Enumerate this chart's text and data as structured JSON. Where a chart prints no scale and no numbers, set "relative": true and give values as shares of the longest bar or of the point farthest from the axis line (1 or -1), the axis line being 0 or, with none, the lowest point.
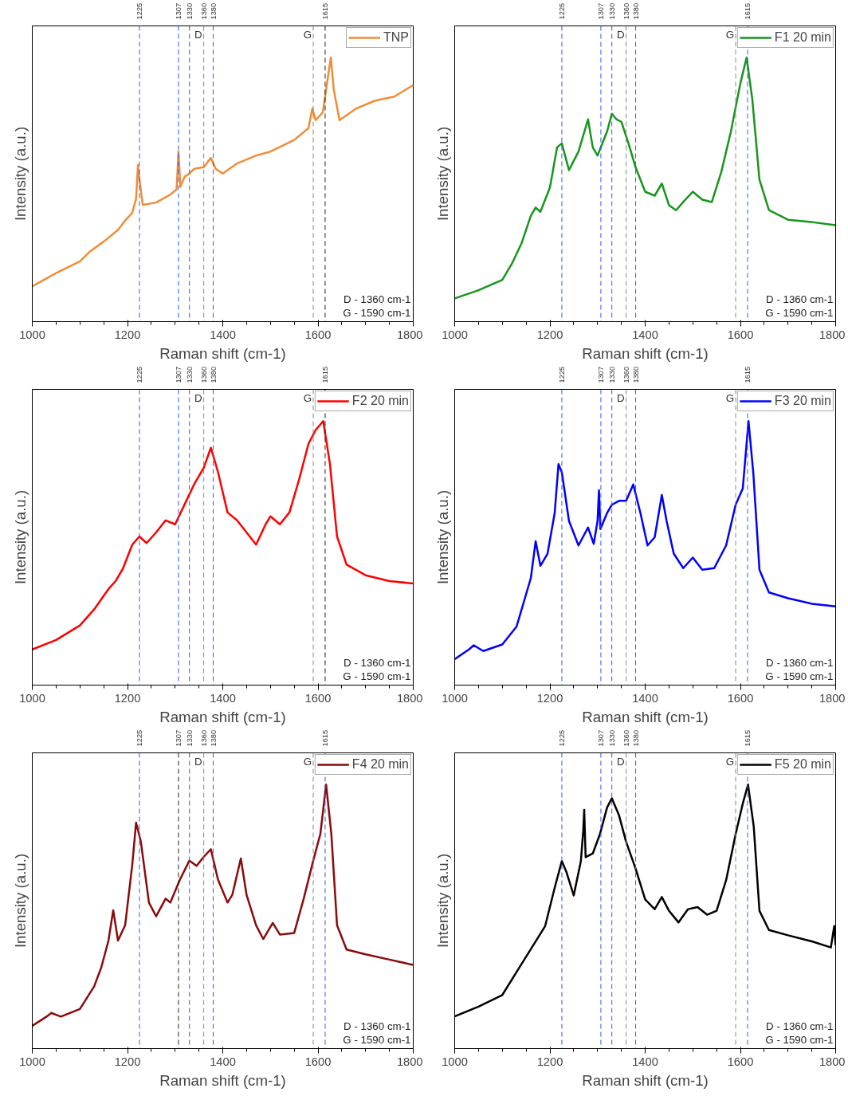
{
  "chart_data": [
    {
      "type": "line",
      "relative": true,
      "xlabel": "Raman shift (cm-1)",
      "ylabel": "Intensity (a.u.)",
      "xlim": [
        1000,
        1800
      ],
      "xticks": [
        1000,
        1200,
        1400,
        1600,
        1800
      ],
      "x2lim": [
        1000,
        1800
      ],
      "x2ticks": [
        1225,
        1307,
        1330,
        1360,
        1380,
        1615
      ],
      "grid": false,
      "legend": "top right",
      "marker": "none",
      "line_style": "solid",
      "series": [
        {
          "name": "TNP",
          "color": "#f28c34",
          "x": [
            1000,
            1050,
            1100,
            1120,
            1150,
            1180,
            1195,
            1210,
            1218,
            1222,
            1226,
            1232,
            1260,
            1290,
            1303,
            1307,
            1311,
            1320,
            1330,
            1340,
            1360,
            1375,
            1385,
            1400,
            1430,
            1470,
            1500,
            1550,
            1580,
            1588,
            1595,
            1610,
            1622,
            1627,
            1633,
            1645,
            1680,
            1720,
            1760,
            1800
          ],
          "values": [
            0.134,
            0.184,
            0.228,
            0.264,
            0.303,
            0.347,
            0.383,
            0.412,
            0.466,
            0.593,
            0.525,
            0.442,
            0.451,
            0.481,
            0.501,
            0.644,
            0.51,
            0.549,
            0.561,
            0.579,
            0.585,
            0.62,
            0.579,
            0.561,
            0.599,
            0.629,
            0.644,
            0.688,
            0.733,
            0.807,
            0.763,
            0.792,
            0.941,
            1,
            0.881,
            0.763,
            0.807,
            0.837,
            0.852,
            0.896
          ]
        }
      ],
      "ref_lines": [
        {
          "axis": "x",
          "value": 1225,
          "color": "#3355ff",
          "line_style": "dashed"
        },
        {
          "axis": "x",
          "value": 1307,
          "color": "#3355ff",
          "line_style": "dashed"
        },
        {
          "axis": "x",
          "value": 1330,
          "color": "#3355ff",
          "line_style": "dashed"
        },
        {
          "axis": "x",
          "value": 1360,
          "label": "D",
          "color": "#888888",
          "line_style": "dashed"
        },
        {
          "axis": "x",
          "value": 1380,
          "color": "#3355ff",
          "line_style": "dashed"
        },
        {
          "axis": "x",
          "value": 1590,
          "label": "G",
          "color": "#888888",
          "line_style": "dashed"
        },
        {
          "axis": "x",
          "value": 1615,
          "color": "#222222",
          "line_style": "dashed"
        }
      ],
      "annotations": [
        "D - 1360 cm-1",
        "G - 1590 cm-1"
      ]
    },
    {
      "type": "line",
      "relative": true,
      "xlabel": "Raman shift (cm-1)",
      "ylabel": "Intensity (a.u.)",
      "xlim": [
        1000,
        1800
      ],
      "xticks": [
        1000,
        1200,
        1400,
        1600,
        1800
      ],
      "x2lim": [
        1000,
        1800
      ],
      "x2ticks": [
        1225,
        1307,
        1330,
        1360,
        1380,
        1615
      ],
      "grid": false,
      "legend": "top right",
      "marker": "none",
      "line_style": "solid",
      "series": [
        {
          "name": "F1 20 min",
          "color": "#16961a",
          "x": [
            1000,
            1050,
            1100,
            1120,
            1140,
            1160,
            1170,
            1180,
            1200,
            1215,
            1225,
            1240,
            1260,
            1280,
            1290,
            1300,
            1320,
            1330,
            1340,
            1350,
            1365,
            1380,
            1400,
            1420,
            1435,
            1450,
            1465,
            1480,
            1500,
            1520,
            1540,
            1560,
            1580,
            1600,
            1613,
            1625,
            1640,
            1660,
            1700,
            1750,
            1800
          ],
          "values": [
            0.088,
            0.119,
            0.158,
            0.219,
            0.295,
            0.401,
            0.432,
            0.416,
            0.508,
            0.66,
            0.675,
            0.574,
            0.644,
            0.766,
            0.66,
            0.629,
            0.72,
            0.787,
            0.766,
            0.757,
            0.675,
            0.584,
            0.492,
            0.477,
            0.523,
            0.441,
            0.422,
            0.453,
            0.492,
            0.462,
            0.453,
            0.568,
            0.72,
            0.903,
            1,
            0.842,
            0.538,
            0.422,
            0.386,
            0.377,
            0.365
          ]
        }
      ],
      "ref_lines": [
        {
          "axis": "x",
          "value": 1225,
          "color": "#3355ff",
          "line_style": "dashed"
        },
        {
          "axis": "x",
          "value": 1307,
          "color": "#3355ff",
          "line_style": "dashed"
        },
        {
          "axis": "x",
          "value": 1330,
          "color": "#3355ff",
          "line_style": "dashed"
        },
        {
          "axis": "x",
          "value": 1360,
          "label": "D",
          "color": "#888888",
          "line_style": "dashed"
        },
        {
          "axis": "x",
          "value": 1380,
          "color": "#3355ff",
          "line_style": "dashed"
        },
        {
          "axis": "x",
          "value": 1590,
          "label": "G",
          "color": "#888888",
          "line_style": "dashed"
        },
        {
          "axis": "x",
          "value": 1615,
          "color": "#3355ff",
          "line_style": "dashed"
        }
      ],
      "annotations": [
        "D - 1360 cm-1",
        "G - 1590 cm-1"
      ]
    },
    {
      "type": "line",
      "relative": true,
      "xlabel": "Raman shift (cm-1)",
      "ylabel": "Intensity (a.u.)",
      "xlim": [
        1000,
        1800
      ],
      "xticks": [
        1000,
        1200,
        1400,
        1600,
        1800
      ],
      "x2lim": [
        1000,
        1800
      ],
      "x2ticks": [
        1225,
        1307,
        1330,
        1360,
        1380,
        1615
      ],
      "grid": false,
      "legend": "top right",
      "marker": "none",
      "line_style": "solid",
      "series": [
        {
          "name": "F2 20 min",
          "color": "#ff0000",
          "x": [
            1000,
            1050,
            1100,
            1130,
            1160,
            1175,
            1190,
            1210,
            1225,
            1240,
            1260,
            1280,
            1300,
            1320,
            1340,
            1360,
            1375,
            1390,
            1410,
            1430,
            1450,
            1470,
            1490,
            1500,
            1520,
            1540,
            1560,
            1580,
            1595,
            1611,
            1625,
            1640,
            1660,
            1700,
            1750,
            1800
          ],
          "values": [
            0.135,
            0.171,
            0.226,
            0.287,
            0.364,
            0.394,
            0.44,
            0.532,
            0.563,
            0.538,
            0.578,
            0.624,
            0.609,
            0.685,
            0.761,
            0.823,
            0.899,
            0.807,
            0.654,
            0.624,
            0.578,
            0.532,
            0.609,
            0.639,
            0.609,
            0.654,
            0.777,
            0.914,
            0.966,
            1,
            0.838,
            0.563,
            0.456,
            0.416,
            0.394,
            0.385
          ]
        }
      ],
      "ref_lines": [
        {
          "axis": "x",
          "value": 1225,
          "color": "#3355ff",
          "line_style": "dashed"
        },
        {
          "axis": "x",
          "value": 1307,
          "color": "#3355ff",
          "line_style": "dashed"
        },
        {
          "axis": "x",
          "value": 1330,
          "color": "#3355ff",
          "line_style": "dashed"
        },
        {
          "axis": "x",
          "value": 1360,
          "label": "D",
          "color": "#888888",
          "line_style": "dashed"
        },
        {
          "axis": "x",
          "value": 1380,
          "color": "#3355ff",
          "line_style": "dashed"
        },
        {
          "axis": "x",
          "value": 1590,
          "label": "G",
          "color": "#888888",
          "line_style": "dashed"
        },
        {
          "axis": "x",
          "value": 1615,
          "color": "#222222",
          "line_style": "dashed"
        }
      ],
      "annotations": [
        "D - 1360 cm-1",
        "G - 1590 cm-1"
      ]
    },
    {
      "type": "line",
      "relative": true,
      "xlabel": "Raman shift (cm-1)",
      "ylabel": "Intensity (a.u.)",
      "xlim": [
        1000,
        1800
      ],
      "xticks": [
        1000,
        1200,
        1400,
        1600,
        1800
      ],
      "x2lim": [
        1000,
        1800
      ],
      "x2ticks": [
        1225,
        1307,
        1330,
        1360,
        1380,
        1615
      ],
      "grid": false,
      "legend": "top right",
      "marker": "none",
      "line_style": "solid",
      "series": [
        {
          "name": "F3 20 min",
          "color": "#0000ff",
          "x": [
            1000,
            1030,
            1040,
            1060,
            1100,
            1130,
            1145,
            1160,
            1170,
            1180,
            1195,
            1210,
            1218,
            1225,
            1240,
            1260,
            1280,
            1292,
            1300,
            1303,
            1306,
            1320,
            1330,
            1345,
            1360,
            1375,
            1390,
            1405,
            1420,
            1435,
            1445,
            1460,
            1480,
            1500,
            1520,
            1545,
            1570,
            1590,
            1605,
            1617,
            1627,
            1640,
            1660,
            1700,
            1750,
            1800
          ],
          "values": [
            0.098,
            0.135,
            0.151,
            0.129,
            0.154,
            0.222,
            0.314,
            0.406,
            0.545,
            0.452,
            0.498,
            0.652,
            0.837,
            0.806,
            0.622,
            0.529,
            0.597,
            0.535,
            0.622,
            0.738,
            0.591,
            0.652,
            0.683,
            0.698,
            0.698,
            0.76,
            0.652,
            0.529,
            0.56,
            0.72,
            0.622,
            0.498,
            0.443,
            0.483,
            0.437,
            0.443,
            0.529,
            0.683,
            0.745,
            1,
            0.806,
            0.437,
            0.351,
            0.329,
            0.308,
            0.298
          ]
        }
      ],
      "ref_lines": [
        {
          "axis": "x",
          "value": 1225,
          "color": "#3355ff",
          "line_style": "dashed"
        },
        {
          "axis": "x",
          "value": 1307,
          "color": "#3355ff",
          "line_style": "dashed"
        },
        {
          "axis": "x",
          "value": 1330,
          "color": "#3355ff",
          "line_style": "dashed"
        },
        {
          "axis": "x",
          "value": 1360,
          "label": "D",
          "color": "#888888",
          "line_style": "dashed"
        },
        {
          "axis": "x",
          "value": 1380,
          "color": "#3355ff",
          "line_style": "dashed"
        },
        {
          "axis": "x",
          "value": 1590,
          "label": "G",
          "color": "#888888",
          "line_style": "dashed"
        },
        {
          "axis": "x",
          "value": 1615,
          "color": "#3355ff",
          "line_style": "dashed"
        }
      ],
      "annotations": [
        "D - 1360 cm-1",
        "G - 1590 cm-1"
      ]
    },
    {
      "type": "line",
      "relative": true,
      "xlabel": "Raman shift (cm-1)",
      "ylabel": "Intensity (a.u.)",
      "xlim": [
        1000,
        1800
      ],
      "xticks": [
        1000,
        1200,
        1400,
        1600,
        1800
      ],
      "x2lim": [
        1000,
        1800
      ],
      "x2ticks": [
        1225,
        1307,
        1330,
        1360,
        1380,
        1615
      ],
      "grid": false,
      "legend": "top right",
      "marker": "none",
      "line_style": "solid",
      "series": [
        {
          "name": "F4 20 min",
          "color": "#8b0a0a",
          "x": [
            1000,
            1030,
            1040,
            1060,
            1100,
            1130,
            1145,
            1160,
            1170,
            1180,
            1195,
            1210,
            1218,
            1228,
            1245,
            1260,
            1280,
            1290,
            1310,
            1330,
            1345,
            1360,
            1375,
            1390,
            1410,
            1420,
            1438,
            1450,
            1470,
            1485,
            1505,
            1520,
            1550,
            1570,
            1590,
            1605,
            1617,
            1628,
            1640,
            1660,
            1700,
            1750,
            1800
          ],
          "values": [
            0.086,
            0.121,
            0.135,
            0.121,
            0.15,
            0.236,
            0.308,
            0.409,
            0.524,
            0.409,
            0.467,
            0.697,
            0.856,
            0.784,
            0.553,
            0.501,
            0.568,
            0.553,
            0.64,
            0.712,
            0.692,
            0.726,
            0.755,
            0.64,
            0.553,
            0.582,
            0.72,
            0.582,
            0.467,
            0.415,
            0.476,
            0.432,
            0.438,
            0.568,
            0.712,
            0.813,
            1,
            0.813,
            0.467,
            0.375,
            0.357,
            0.337,
            0.317
          ]
        }
      ],
      "ref_lines": [
        {
          "axis": "x",
          "value": 1225,
          "color": "#3355ff",
          "line_style": "dashed"
        },
        {
          "axis": "x",
          "value": 1307,
          "color": "#222222",
          "line_style": "dashed"
        },
        {
          "axis": "x",
          "value": 1330,
          "color": "#3355ff",
          "line_style": "dashed"
        },
        {
          "axis": "x",
          "value": 1360,
          "label": "D",
          "color": "#888888",
          "line_style": "dashed"
        },
        {
          "axis": "x",
          "value": 1380,
          "color": "#3355ff",
          "line_style": "dashed"
        },
        {
          "axis": "x",
          "value": 1590,
          "label": "G",
          "color": "#888888",
          "line_style": "dashed"
        },
        {
          "axis": "x",
          "value": 1615,
          "color": "#3355ff",
          "line_style": "dashed"
        }
      ],
      "annotations": [
        "D - 1360 cm-1",
        "G - 1590 cm-1"
      ]
    },
    {
      "type": "line",
      "relative": true,
      "xlabel": "Raman shift (cm-1)",
      "ylabel": "Intensity (a.u.)",
      "xlim": [
        1000,
        1800
      ],
      "xticks": [
        1000,
        1200,
        1400,
        1600,
        1800
      ],
      "x2lim": [
        1000,
        1800
      ],
      "x2ticks": [
        1225,
        1307,
        1330,
        1360,
        1380,
        1615
      ],
      "grid": false,
      "legend": "top right",
      "marker": "none",
      "line_style": "solid",
      "series": [
        {
          "name": "F5 20 min",
          "color": "#000000",
          "x": [
            1000,
            1050,
            1100,
            1130,
            1160,
            1190,
            1210,
            1225,
            1235,
            1250,
            1265,
            1270,
            1272,
            1275,
            1290,
            1305,
            1320,
            1330,
            1345,
            1360,
            1380,
            1400,
            1420,
            1435,
            1450,
            1470,
            1490,
            1510,
            1530,
            1550,
            1570,
            1590,
            1605,
            1616,
            1628,
            1640,
            1660,
            1700,
            1750,
            1790,
            1797,
            1800
          ],
          "values": [
            0.122,
            0.159,
            0.203,
            0.29,
            0.377,
            0.464,
            0.609,
            0.71,
            0.667,
            0.58,
            0.71,
            0.826,
            0.904,
            0.725,
            0.739,
            0.812,
            0.913,
            0.948,
            0.884,
            0.783,
            0.681,
            0.565,
            0.528,
            0.574,
            0.522,
            0.478,
            0.528,
            0.536,
            0.507,
            0.522,
            0.638,
            0.812,
            0.928,
            1,
            0.841,
            0.522,
            0.449,
            0.429,
            0.406,
            0.383,
            0.464,
            0.391
          ]
        }
      ],
      "ref_lines": [
        {
          "axis": "x",
          "value": 1225,
          "color": "#3355ff",
          "line_style": "dashed"
        },
        {
          "axis": "x",
          "value": 1307,
          "color": "#3355ff",
          "line_style": "dashed"
        },
        {
          "axis": "x",
          "value": 1330,
          "color": "#3355ff",
          "line_style": "dashed"
        },
        {
          "axis": "x",
          "value": 1360,
          "label": "D",
          "color": "#888888",
          "line_style": "dashed"
        },
        {
          "axis": "x",
          "value": 1380,
          "color": "#3355ff",
          "line_style": "dashed"
        },
        {
          "axis": "x",
          "value": 1590,
          "label": "G",
          "color": "#888888",
          "line_style": "dashed"
        },
        {
          "axis": "x",
          "value": 1615,
          "color": "#3355ff",
          "line_style": "dashed"
        }
      ],
      "annotations": [
        "D - 1360 cm-1",
        "G - 1590 cm-1"
      ]
    }
  ]
}
